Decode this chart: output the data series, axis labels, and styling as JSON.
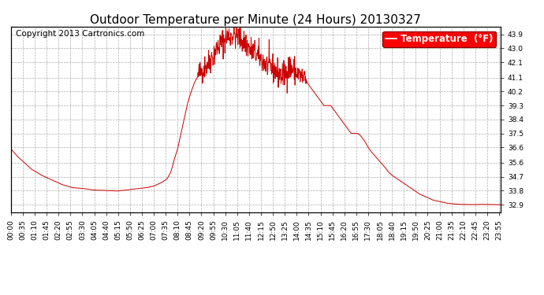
{
  "title": "Outdoor Temperature per Minute (24 Hours) 20130327",
  "copyright_text": "Copyright 2013 Cartronics.com",
  "legend_label": "Temperature  (°F)",
  "line_color": "#cc0000",
  "background_color": "#ffffff",
  "grid_color": "#999999",
  "yticks": [
    32.9,
    33.8,
    34.7,
    35.6,
    36.6,
    37.5,
    38.4,
    39.3,
    40.2,
    41.1,
    42.1,
    43.0,
    43.9
  ],
  "ylim": [
    32.4,
    44.4
  ],
  "total_minutes": 1440,
  "key_points": [
    [
      0,
      36.5
    ],
    [
      20,
      36.0
    ],
    [
      40,
      35.6
    ],
    [
      60,
      35.2
    ],
    [
      90,
      34.8
    ],
    [
      120,
      34.5
    ],
    [
      150,
      34.2
    ],
    [
      180,
      34.0
    ],
    [
      210,
      33.95
    ],
    [
      240,
      33.85
    ],
    [
      270,
      33.82
    ],
    [
      300,
      33.8
    ],
    [
      310,
      33.78
    ],
    [
      320,
      33.8
    ],
    [
      330,
      33.82
    ],
    [
      340,
      33.85
    ],
    [
      360,
      33.9
    ],
    [
      380,
      33.95
    ],
    [
      400,
      34.0
    ],
    [
      420,
      34.1
    ],
    [
      440,
      34.3
    ],
    [
      455,
      34.5
    ],
    [
      460,
      34.6
    ],
    [
      470,
      35.0
    ],
    [
      480,
      35.8
    ],
    [
      490,
      36.5
    ],
    [
      500,
      37.5
    ],
    [
      510,
      38.5
    ],
    [
      520,
      39.5
    ],
    [
      530,
      40.2
    ],
    [
      540,
      40.8
    ],
    [
      550,
      41.2
    ],
    [
      560,
      41.5
    ],
    [
      570,
      41.8
    ],
    [
      580,
      42.0
    ],
    [
      590,
      42.4
    ],
    [
      600,
      42.8
    ],
    [
      610,
      43.1
    ],
    [
      620,
      43.4
    ],
    [
      630,
      43.6
    ],
    [
      640,
      43.8
    ],
    [
      650,
      43.9
    ],
    [
      660,
      43.85
    ],
    [
      670,
      43.7
    ],
    [
      680,
      43.5
    ],
    [
      690,
      43.3
    ],
    [
      700,
      43.0
    ],
    [
      710,
      42.8
    ],
    [
      720,
      42.6
    ],
    [
      730,
      42.4
    ],
    [
      740,
      42.2
    ],
    [
      750,
      42.0
    ],
    [
      760,
      41.8
    ],
    [
      770,
      41.6
    ],
    [
      780,
      41.5
    ],
    [
      790,
      41.3
    ],
    [
      800,
      41.2
    ],
    [
      810,
      41.5
    ],
    [
      820,
      41.8
    ],
    [
      830,
      41.6
    ],
    [
      840,
      41.4
    ],
    [
      850,
      41.2
    ],
    [
      860,
      41.0
    ],
    [
      870,
      40.8
    ],
    [
      880,
      40.5
    ],
    [
      890,
      40.2
    ],
    [
      900,
      39.9
    ],
    [
      910,
      39.6
    ],
    [
      920,
      39.3
    ],
    [
      930,
      39.3
    ],
    [
      940,
      39.3
    ],
    [
      950,
      39.0
    ],
    [
      960,
      38.7
    ],
    [
      970,
      38.4
    ],
    [
      980,
      38.1
    ],
    [
      990,
      37.8
    ],
    [
      1000,
      37.5
    ],
    [
      1010,
      37.5
    ],
    [
      1020,
      37.5
    ],
    [
      1030,
      37.3
    ],
    [
      1040,
      37.0
    ],
    [
      1050,
      36.6
    ],
    [
      1060,
      36.3
    ],
    [
      1080,
      35.8
    ],
    [
      1100,
      35.3
    ],
    [
      1110,
      35.0
    ],
    [
      1120,
      34.8
    ],
    [
      1140,
      34.5
    ],
    [
      1160,
      34.2
    ],
    [
      1180,
      33.9
    ],
    [
      1200,
      33.6
    ],
    [
      1220,
      33.4
    ],
    [
      1240,
      33.2
    ],
    [
      1260,
      33.1
    ],
    [
      1280,
      33.0
    ],
    [
      1300,
      32.95
    ],
    [
      1320,
      32.92
    ],
    [
      1340,
      32.91
    ],
    [
      1360,
      32.9
    ],
    [
      1380,
      32.92
    ],
    [
      1400,
      32.91
    ],
    [
      1420,
      32.9
    ],
    [
      1439,
      32.9
    ]
  ],
  "noisy_ranges": [
    [
      550,
      870
    ]
  ],
  "noise_amplitude": 0.45,
  "xtick_interval": 35,
  "title_fontsize": 11,
  "tick_fontsize": 6.5,
  "legend_fontsize": 8.5,
  "copyright_fontsize": 7.5
}
